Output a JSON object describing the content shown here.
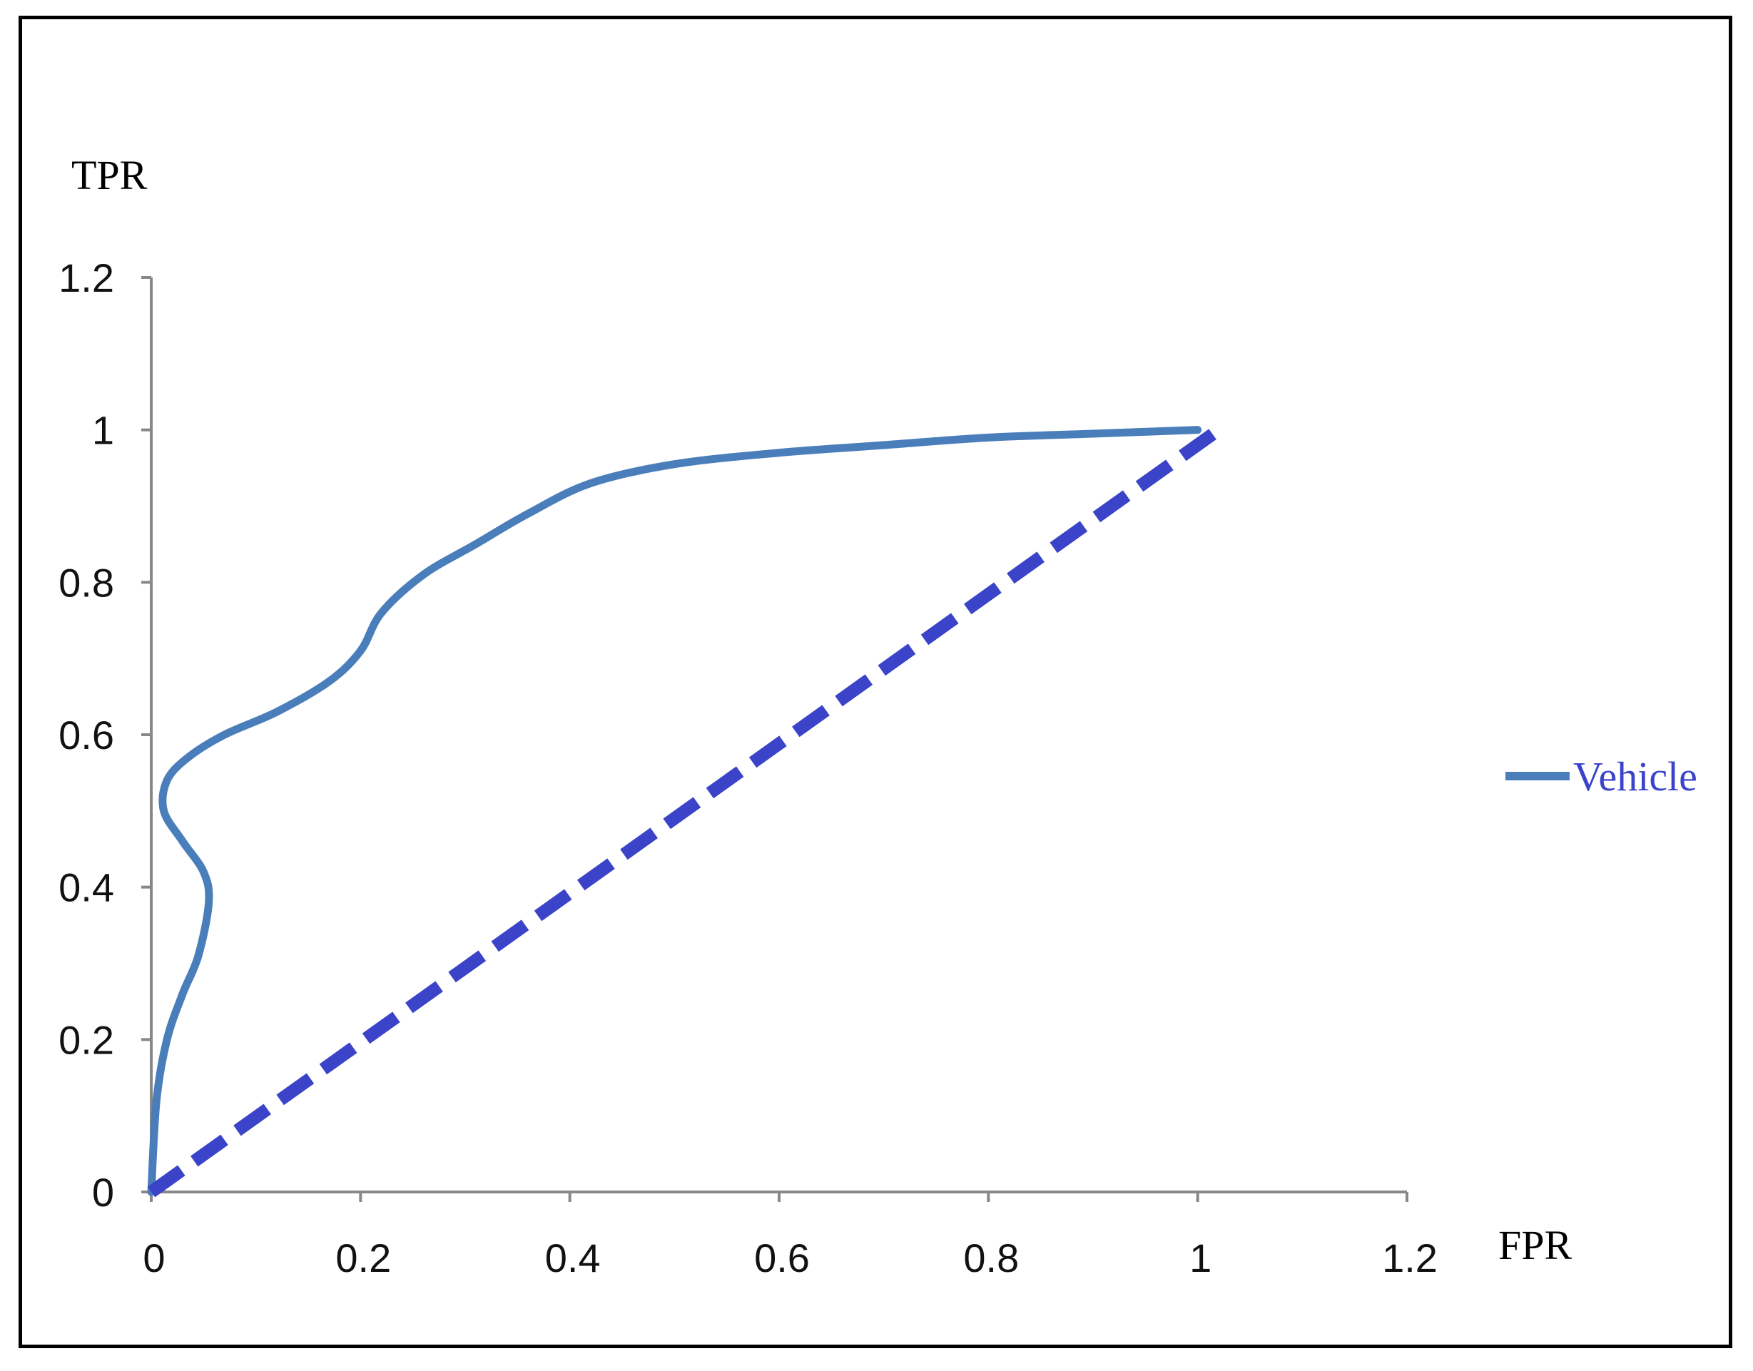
{
  "chart_data": {
    "type": "line",
    "xlabel": "FPR",
    "ylabel": "TPR",
    "xlim": [
      0,
      1.2
    ],
    "ylim": [
      0,
      1.2
    ],
    "xticks": [
      "0",
      "0.2",
      "0.4",
      "0.6",
      "0.8",
      "1",
      "1.2"
    ],
    "yticks": [
      "0",
      "0.2",
      "0.4",
      "0.6",
      "0.8",
      "1",
      "1.2"
    ],
    "grid": false,
    "legend_position": "right",
    "series": [
      {
        "name": "Vehicle",
        "color": "#4a7ebb",
        "style": "solid",
        "x": [
          0,
          0.005,
          0.015,
          0.03,
          0.045,
          0.055,
          0.05,
          0.03,
          0.012,
          0.015,
          0.035,
          0.07,
          0.12,
          0.17,
          0.2,
          0.22,
          0.26,
          0.31,
          0.36,
          0.42,
          0.5,
          0.6,
          0.7,
          0.8,
          0.9,
          1.0
        ],
        "y": [
          0,
          0.12,
          0.2,
          0.26,
          0.31,
          0.38,
          0.42,
          0.46,
          0.5,
          0.54,
          0.57,
          0.6,
          0.63,
          0.67,
          0.71,
          0.76,
          0.81,
          0.85,
          0.89,
          0.93,
          0.955,
          0.97,
          0.98,
          0.99,
          0.995,
          1.0
        ]
      },
      {
        "name": "",
        "color": "#3b44c9",
        "style": "dashed",
        "x": [
          0,
          1.02
        ],
        "y": [
          0,
          1.0
        ]
      }
    ]
  }
}
